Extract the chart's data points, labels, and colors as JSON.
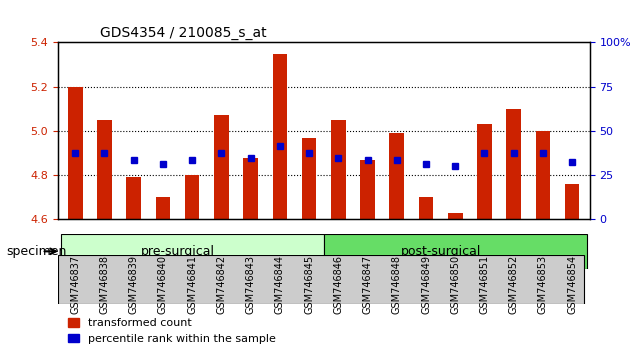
{
  "title": "GDS4354 / 210085_s_at",
  "samples": [
    "GSM746837",
    "GSM746838",
    "GSM746839",
    "GSM746840",
    "GSM746841",
    "GSM746842",
    "GSM746843",
    "GSM746844",
    "GSM746845",
    "GSM746846",
    "GSM746847",
    "GSM746848",
    "GSM746849",
    "GSM746850",
    "GSM746851",
    "GSM746852",
    "GSM746853",
    "GSM746854"
  ],
  "bar_values": [
    5.2,
    5.05,
    4.79,
    4.7,
    4.8,
    5.07,
    4.88,
    5.35,
    4.97,
    5.05,
    4.87,
    4.99,
    4.7,
    4.63,
    5.03,
    5.1,
    5.0,
    4.76
  ],
  "dot_values": [
    4.9,
    4.9,
    4.87,
    4.85,
    4.87,
    4.9,
    4.88,
    4.93,
    4.9,
    4.88,
    4.87,
    4.87,
    4.85,
    4.84,
    4.9,
    4.9,
    4.9,
    4.86
  ],
  "dot_percentiles": [
    45,
    45,
    30,
    28,
    30,
    45,
    37,
    50,
    45,
    37,
    30,
    30,
    28,
    25,
    45,
    45,
    45,
    28
  ],
  "ylim": [
    4.6,
    5.4
  ],
  "yticks": [
    4.6,
    4.8,
    5.0,
    5.2,
    5.4
  ],
  "bar_color": "#cc2200",
  "dot_color": "#0000cc",
  "grid_color": "#000000",
  "pre_surgical_count": 9,
  "post_surgical_count": 9,
  "group1_label": "pre-surgical",
  "group2_label": "post-surgical",
  "specimen_label": "specimen",
  "legend_bar": "transformed count",
  "legend_dot": "percentile rank within the sample",
  "ylabel_left_color": "#cc2200",
  "ylabel_right_color": "#0000cc",
  "right_yticks": [
    0,
    25,
    50,
    75,
    100
  ],
  "right_ytick_labels": [
    "0",
    "25",
    "50",
    "75",
    "100%"
  ],
  "background_color": "#ffffff",
  "plot_bg": "#ffffff",
  "tick_bg": "#dddddd"
}
